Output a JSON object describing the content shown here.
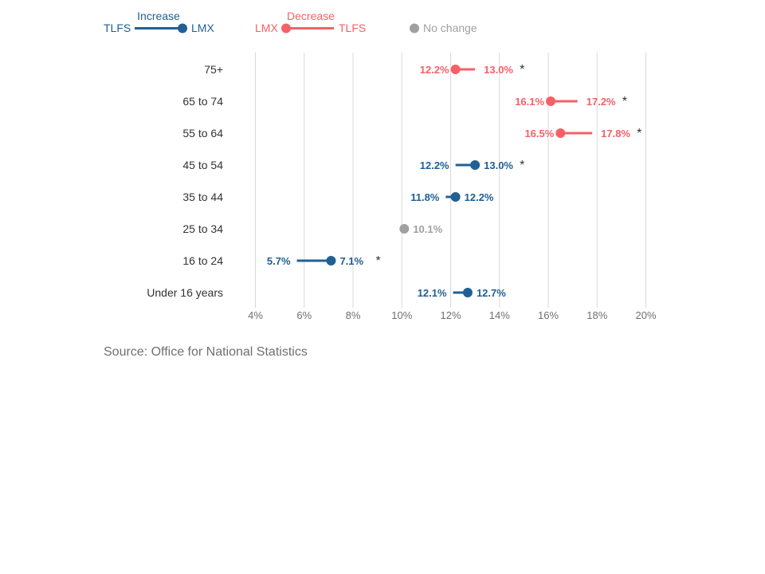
{
  "legend": {
    "increase": {
      "title": "Increase",
      "left": "TLFS",
      "right": "LMX"
    },
    "decrease": {
      "title": "Decrease",
      "left": "LMX",
      "right": "TLFS"
    },
    "no_change": {
      "label": "No change"
    }
  },
  "colors": {
    "increase": "#206095",
    "decrease": "#f66068",
    "no_change": "#a0a0a0",
    "grid": "#d9d9d9",
    "axis_text": "#707070",
    "category_text": "#333333"
  },
  "chart_data": {
    "type": "dumbbell",
    "categories": [
      "75+",
      "65 to 74",
      "55 to 64",
      "45 to 54",
      "35 to 44",
      "25 to 34",
      "16 to 24",
      "Under 16 years"
    ],
    "series": [
      {
        "name": "TLFS",
        "values": [
          13.0,
          17.2,
          17.8,
          12.2,
          11.8,
          10.1,
          5.7,
          12.1
        ]
      },
      {
        "name": "LMX",
        "values": [
          12.2,
          16.1,
          16.5,
          13.0,
          12.2,
          10.1,
          7.1,
          12.7
        ]
      }
    ],
    "significant": [
      true,
      true,
      true,
      true,
      false,
      false,
      true,
      false
    ],
    "significance_marker": "*",
    "x_ticks": [
      4,
      6,
      8,
      10,
      12,
      14,
      16,
      18,
      20
    ],
    "x_tick_labels": [
      "4%",
      "6%",
      "8%",
      "10%",
      "12%",
      "14%",
      "16%",
      "18%",
      "20%"
    ],
    "xlim": [
      4,
      20
    ],
    "value_suffix": "%",
    "grid": true,
    "legend_position": "top-left"
  },
  "source": "Source: Office for National Statistics"
}
